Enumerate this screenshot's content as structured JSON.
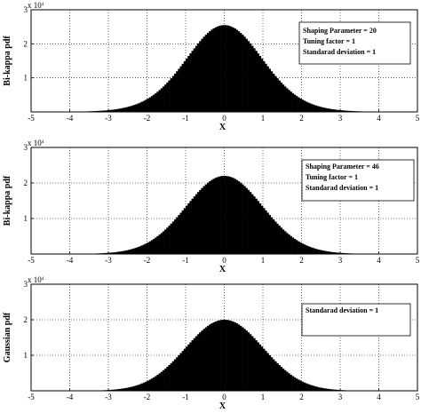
{
  "chart_data": [
    {
      "type": "bar",
      "ylabel": "Bi-kappa pdf",
      "xlabel": "X",
      "xlim": [
        -5,
        5
      ],
      "ylim": [
        0,
        30000
      ],
      "xticks": [
        "-5",
        "-4",
        "-3",
        "-2",
        "-1",
        "0",
        "1",
        "2",
        "3",
        "4",
        "5"
      ],
      "yticks": [
        "1",
        "2",
        "3"
      ],
      "y_multiplier": "x 10^4",
      "grid": true,
      "legend_position": "top-right",
      "legend": [
        "Shaping Parameter = 20",
        "Tuning factor = 1",
        "Standarad deviation = 1"
      ],
      "distribution": {
        "center": 0,
        "std": 1,
        "kappa": 20,
        "peak": 25500
      }
    },
    {
      "type": "bar",
      "ylabel": "Bi-kappa pdf",
      "xlabel": "X",
      "xlim": [
        -5,
        5
      ],
      "ylim": [
        0,
        30000
      ],
      "xticks": [
        "-5",
        "-4",
        "-3",
        "-2",
        "-1",
        "0",
        "1",
        "2",
        "3",
        "4",
        "5"
      ],
      "yticks": [
        "1",
        "2",
        "3"
      ],
      "y_multiplier": "x 10^4",
      "grid": true,
      "legend_position": "top-right",
      "legend": [
        "Shaping Parameter = 46",
        "Tuning factor = 1",
        "Standarad deviation = 1"
      ],
      "distribution": {
        "center": 0,
        "std": 1,
        "kappa": 46,
        "peak": 22000
      }
    },
    {
      "type": "bar",
      "ylabel": "Gaussian pdf",
      "xlabel": "X",
      "xlim": [
        -5,
        5
      ],
      "ylim": [
        0,
        30000
      ],
      "xticks": [
        "-5",
        "-4",
        "-3",
        "-2",
        "-1",
        "0",
        "1",
        "2",
        "3",
        "4",
        "5"
      ],
      "yticks": [
        "1",
        "2",
        "3"
      ],
      "y_multiplier": "x 10^4",
      "grid": true,
      "legend_position": "top-right",
      "legend": [
        "Standarad deviation = 1"
      ],
      "distribution": {
        "center": 0,
        "std": 1,
        "peak": 20000
      }
    }
  ]
}
